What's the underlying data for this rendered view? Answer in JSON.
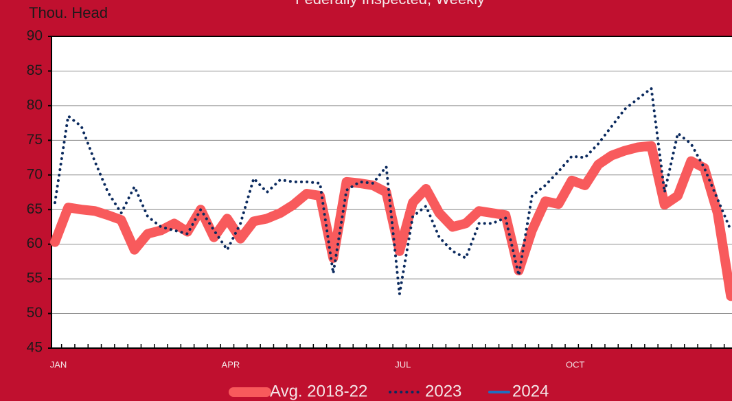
{
  "chart_data": {
    "type": "line",
    "title": "Federally Inspected, Weekly",
    "y_label": "Thou. Head",
    "categories": [
      "JAN",
      null,
      null,
      null,
      null,
      null,
      null,
      null,
      null,
      null,
      null,
      null,
      null,
      "APR",
      null,
      null,
      null,
      null,
      null,
      null,
      null,
      null,
      null,
      null,
      null,
      null,
      "JUL",
      null,
      null,
      null,
      null,
      null,
      null,
      null,
      null,
      null,
      null,
      null,
      null,
      "OCT",
      null,
      null,
      null,
      null,
      null,
      null,
      null,
      null,
      null,
      null,
      null,
      null
    ],
    "series": [
      {
        "name": "Avg. 2018-22",
        "color": "#f85a5c",
        "style": "solid",
        "width": 14,
        "values": [
          60.3,
          65.3,
          65,
          64.8,
          64.2,
          63.5,
          59.2,
          61.5,
          62,
          63,
          61.8,
          65,
          61,
          63.7,
          60.8,
          63.3,
          63.7,
          64.5,
          65.7,
          67.3,
          67,
          58,
          69,
          68.8,
          68.5,
          67.5,
          59,
          66,
          68,
          64.5,
          62.5,
          63,
          64.8,
          64.5,
          64.2,
          56.2,
          62,
          66.2,
          65.8,
          69.2,
          68.5,
          71.5,
          72.8,
          73.5,
          74,
          74.2,
          65.7,
          67,
          72,
          71,
          64.5,
          52.5
        ]
      },
      {
        "name": "2023",
        "color": "#0b2a5e",
        "style": "dotted",
        "width": 4,
        "values": [
          66,
          78.5,
          77,
          72,
          67.5,
          64.5,
          68.3,
          64,
          62.5,
          62,
          61.5,
          65,
          62,
          59.2,
          63,
          69.5,
          67.5,
          69.3,
          69,
          69,
          68.8,
          55.8,
          67.8,
          69,
          68.8,
          71.2,
          52.8,
          64,
          65.5,
          61,
          59,
          58,
          63,
          63,
          63.8,
          55.5,
          67,
          68.5,
          70.5,
          72.7,
          72.5,
          74.5,
          77,
          79.5,
          81,
          82.5,
          67.5,
          76,
          74.5,
          71,
          66.5,
          62
        ]
      },
      {
        "name": "2024",
        "color": "#1f6fc0",
        "style": "solid",
        "width": 4,
        "values": [
          null,
          null,
          null,
          null,
          null,
          null,
          null,
          null,
          null,
          null,
          null,
          null,
          null,
          null,
          null,
          null,
          null,
          null,
          null,
          null,
          null,
          null,
          null,
          null,
          null,
          null,
          null,
          null,
          null,
          null,
          null,
          null,
          null,
          null,
          null,
          null,
          null,
          null,
          null,
          null,
          null,
          null,
          null,
          null,
          null,
          null,
          null,
          null,
          null,
          null,
          null,
          null
        ]
      }
    ],
    "ylim": [
      45,
      90
    ],
    "yticks": [
      45,
      50,
      55,
      60,
      65,
      70,
      75,
      80,
      85,
      90
    ],
    "grid": true
  }
}
